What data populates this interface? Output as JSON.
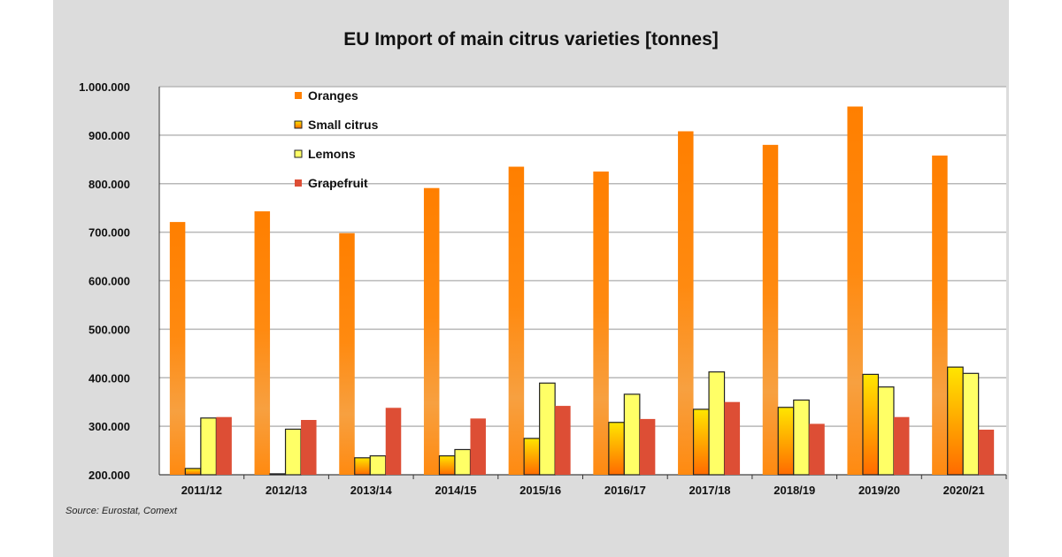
{
  "chart_data": {
    "type": "bar",
    "title": "EU Import of main citrus varieties  [tonnes]",
    "source": "Source: Eurostat, Comext",
    "categories": [
      "2011/12",
      "2012/13",
      "2013/14",
      "2014/15",
      "2015/16",
      "2016/17",
      "2017/18",
      "2018/19",
      "2019/20",
      "2020/21"
    ],
    "ylim": [
      200000,
      1000000
    ],
    "yticks": [
      200000,
      300000,
      400000,
      500000,
      600000,
      700000,
      800000,
      900000,
      1000000
    ],
    "ytick_labels": [
      "200.000",
      "300.000",
      "400.000",
      "500.000",
      "600.000",
      "700.000",
      "800.000",
      "900.000",
      "1.000.000"
    ],
    "grid": true,
    "legend_position": "top-left",
    "series": [
      {
        "name": "Oranges",
        "color": "#ff8000",
        "values": [
          721000,
          743000,
          698000,
          791000,
          835000,
          825000,
          908000,
          880000,
          959000,
          858000
        ]
      },
      {
        "name": "Small citrus",
        "color": "#ffc000",
        "values": [
          213000,
          202000,
          235000,
          239000,
          275000,
          308000,
          335000,
          339000,
          407000,
          422000
        ]
      },
      {
        "name": "Lemons",
        "color": "#ffff66",
        "values": [
          317000,
          294000,
          239000,
          252000,
          389000,
          366000,
          412000,
          354000,
          381000,
          409000
        ]
      },
      {
        "name": "Grapefruit",
        "color": "#e05030",
        "values": [
          319000,
          313000,
          338000,
          316000,
          342000,
          315000,
          350000,
          305000,
          319000,
          293000
        ]
      }
    ]
  }
}
